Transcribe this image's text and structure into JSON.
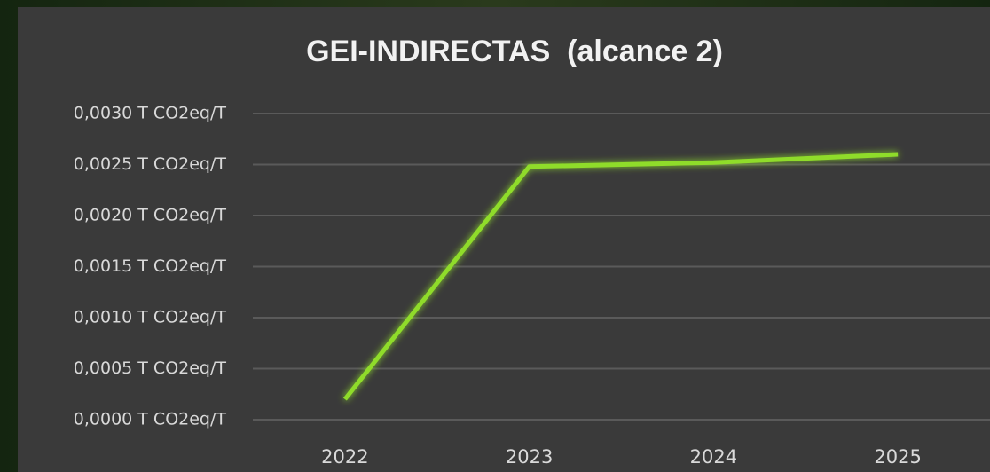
{
  "chart_data": {
    "type": "line",
    "title": "GEI-INDIRECTAS  (alcance 2)",
    "categories": [
      "2022",
      "2023",
      "2024",
      "2025"
    ],
    "series": [
      {
        "name": "GEI-INDIRECTAS (alcance 2)",
        "color": "#8fdc2c",
        "values": [
          0.0002,
          0.00248,
          0.00252,
          0.0026
        ]
      }
    ],
    "ylim": [
      0,
      0.003
    ],
    "yticks": [
      {
        "value": 0,
        "label": "0,0000 T CO2eq/T"
      },
      {
        "value": 0.0005,
        "label": "0,0005 T CO2eq/T"
      },
      {
        "value": 0.001,
        "label": "0,0010 T CO2eq/T"
      },
      {
        "value": 0.0015,
        "label": "0,0015 T CO2eq/T"
      },
      {
        "value": 0.002,
        "label": "0,0020 T CO2eq/T"
      },
      {
        "value": 0.0025,
        "label": "0,0025 T CO2eq/T"
      },
      {
        "value": 0.003,
        "label": "0,0030 T CO2eq/T"
      }
    ],
    "grid": true
  }
}
